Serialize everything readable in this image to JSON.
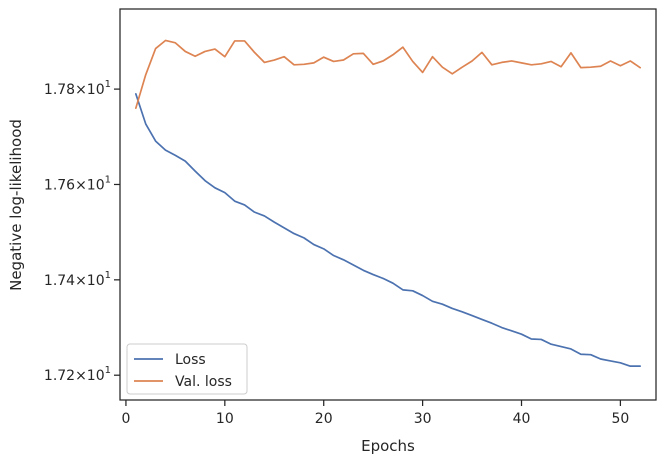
{
  "chart_data": {
    "type": "line",
    "xlabel": "Epochs",
    "ylabel": "Negative log-likelihood",
    "xlim": [
      -0.6,
      53.6
    ],
    "ylim": [
      17.148,
      17.968
    ],
    "x_ticks": [
      0,
      10,
      20,
      30,
      40,
      50
    ],
    "y_ticks": [
      {
        "value": 17.2,
        "mantissa": "1.72",
        "exponent": "1"
      },
      {
        "value": 17.4,
        "mantissa": "1.74",
        "exponent": "1"
      },
      {
        "value": 17.6,
        "mantissa": "1.76",
        "exponent": "1"
      },
      {
        "value": 17.8,
        "mantissa": "1.78",
        "exponent": "1"
      }
    ],
    "y_tick_base": "10",
    "legend_position": "lower-left",
    "x": [
      1,
      2,
      3,
      4,
      5,
      6,
      7,
      8,
      9,
      10,
      11,
      12,
      13,
      14,
      15,
      16,
      17,
      18,
      19,
      20,
      21,
      22,
      23,
      24,
      25,
      26,
      27,
      28,
      29,
      30,
      31,
      32,
      33,
      34,
      35,
      36,
      37,
      38,
      39,
      40,
      41,
      42,
      43,
      44,
      45,
      46,
      47,
      48,
      49,
      50,
      51,
      52
    ],
    "series": [
      {
        "name": "Loss",
        "color": "#4c72b0",
        "values": [
          17.79,
          17.727,
          17.691,
          17.672,
          17.661,
          17.649,
          17.628,
          17.608,
          17.593,
          17.583,
          17.565,
          17.557,
          17.542,
          17.534,
          17.521,
          17.509,
          17.497,
          17.488,
          17.474,
          17.465,
          17.451,
          17.442,
          17.431,
          17.42,
          17.411,
          17.403,
          17.393,
          17.379,
          17.377,
          17.367,
          17.355,
          17.349,
          17.34,
          17.333,
          17.325,
          17.317,
          17.309,
          17.3,
          17.293,
          17.286,
          17.276,
          17.275,
          17.265,
          17.26,
          17.255,
          17.244,
          17.243,
          17.234,
          17.23,
          17.226,
          17.219,
          17.219
        ]
      },
      {
        "name": "Val. loss",
        "color": "#dd8452",
        "values": [
          17.76,
          17.83,
          17.885,
          17.902,
          17.897,
          17.879,
          17.869,
          17.879,
          17.884,
          17.868,
          17.901,
          17.901,
          17.877,
          17.856,
          17.861,
          17.868,
          17.851,
          17.852,
          17.855,
          17.867,
          17.858,
          17.861,
          17.874,
          17.875,
          17.852,
          17.859,
          17.872,
          17.888,
          17.858,
          17.835,
          17.868,
          17.846,
          17.832,
          17.846,
          17.859,
          17.877,
          17.851,
          17.856,
          17.859,
          17.855,
          17.851,
          17.853,
          17.858,
          17.847,
          17.876,
          17.845,
          17.846,
          17.848,
          17.859,
          17.849,
          17.859,
          17.845
        ]
      }
    ]
  }
}
